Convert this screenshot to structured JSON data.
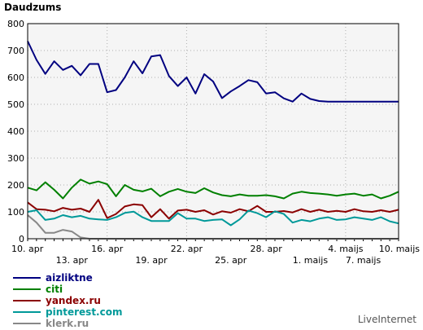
{
  "header": {
    "title": "Daudzums"
  },
  "brand": "LiveInternet",
  "colors": {
    "plot_bg": "#f5f5f5",
    "grid": "#b0b0b0",
    "axis": "#000000"
  },
  "chart_data": {
    "type": "line",
    "title": "Daudzums",
    "ylim": [
      0,
      800
    ],
    "yticks": [
      0,
      100,
      200,
      300,
      400,
      500,
      600,
      700,
      800
    ],
    "x_count": 43,
    "x_labels_upper": [
      {
        "index": 0,
        "label": "10. apr"
      },
      {
        "index": 9,
        "label": "16. apr"
      },
      {
        "index": 18,
        "label": "22. apr"
      },
      {
        "index": 27,
        "label": "28. apr"
      },
      {
        "index": 36,
        "label": "4. maijs"
      },
      {
        "index": 42,
        "label": "10. maijs"
      }
    ],
    "x_labels_lower": [
      {
        "index": 5,
        "label": "13. apr"
      },
      {
        "index": 14,
        "label": "19. apr"
      },
      {
        "index": 23,
        "label": "25. apr"
      },
      {
        "index": 32,
        "label": "1. maijs"
      },
      {
        "index": 38,
        "label": "7. maijs"
      }
    ],
    "grid": true,
    "legend_position": "bottom-left",
    "series": [
      {
        "name": "aizliktne",
        "color": "#000080",
        "values": [
          735,
          665,
          613,
          660,
          628,
          643,
          608,
          650,
          650,
          545,
          553,
          600,
          660,
          615,
          678,
          683,
          605,
          568,
          600,
          540,
          612,
          585,
          523,
          548,
          568,
          590,
          582,
          540,
          545,
          522,
          510,
          540,
          520,
          512,
          510,
          510,
          510,
          510,
          510,
          510,
          510,
          510,
          510
        ]
      },
      {
        "name": "citi",
        "color": "#008000",
        "values": [
          190,
          180,
          210,
          182,
          150,
          190,
          220,
          205,
          213,
          203,
          158,
          200,
          182,
          176,
          186,
          158,
          175,
          185,
          175,
          170,
          188,
          172,
          162,
          158,
          165,
          160,
          160,
          162,
          158,
          150,
          168,
          175,
          170,
          168,
          165,
          160,
          165,
          168,
          160,
          165,
          150,
          160,
          175
        ]
      },
      {
        "name": "yandex.ru",
        "color": "#8b0000",
        "values": [
          135,
          110,
          108,
          102,
          115,
          108,
          112,
          100,
          145,
          77,
          92,
          120,
          128,
          125,
          80,
          110,
          75,
          105,
          108,
          100,
          106,
          90,
          102,
          97,
          110,
          102,
          122,
          100,
          100,
          103,
          98,
          110,
          100,
          108,
          100,
          104,
          100,
          110,
          102,
          100,
          106,
          100,
          108
        ]
      },
      {
        "name": "pinterest.com",
        "color": "#009999",
        "values": [
          100,
          106,
          70,
          75,
          88,
          80,
          85,
          75,
          72,
          70,
          80,
          96,
          101,
          80,
          66,
          66,
          66,
          95,
          75,
          75,
          66,
          70,
          72,
          50,
          72,
          105,
          95,
          80,
          102,
          92,
          60,
          70,
          65,
          75,
          80,
          70,
          72,
          80,
          75,
          70,
          80,
          65,
          57
        ]
      },
      {
        "name": "klerk.ru",
        "color": "#888888",
        "values": [
          88,
          60,
          22,
          22,
          33,
          27,
          5,
          0,
          0,
          0,
          0,
          0,
          0,
          0,
          0,
          0,
          0,
          0,
          0,
          0,
          0,
          0,
          0,
          0,
          0,
          0,
          0,
          0,
          0,
          0,
          0,
          0,
          0,
          0,
          0,
          0,
          0,
          0,
          0,
          0,
          0,
          0,
          0
        ]
      }
    ]
  }
}
